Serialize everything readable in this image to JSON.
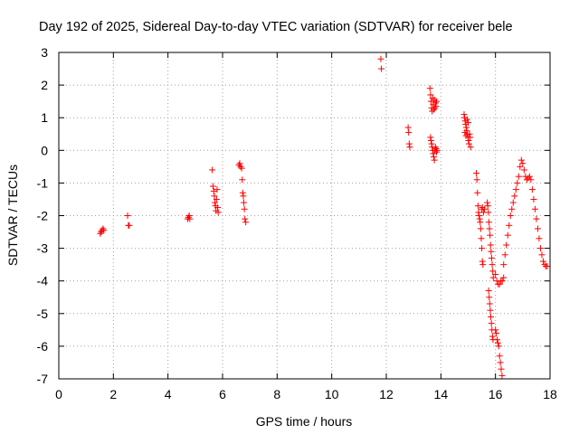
{
  "chart_data": {
    "type": "scatter",
    "title": "Day 192 of 2025, Sidereal Day-to-day VTEC variation (SDTVAR) for receiver bele",
    "xlabel": "GPS time / hours",
    "ylabel": "SDTVAR / TECUs",
    "xlim": [
      0,
      18
    ],
    "ylim": [
      -7,
      3
    ],
    "xticks": [
      "0",
      "2",
      "4",
      "6",
      "8",
      "10",
      "12",
      "14",
      "16",
      "18"
    ],
    "yticks": [
      "3",
      "2",
      "1",
      "0",
      "-1",
      "-2",
      "-3",
      "-4",
      "-5",
      "-6",
      "-7"
    ],
    "grid": true,
    "marker": "+",
    "color": "#ff0000",
    "series": [
      {
        "name": "SDTVAR",
        "points": [
          [
            1.52,
            -2.55
          ],
          [
            1.55,
            -2.5
          ],
          [
            1.58,
            -2.45
          ],
          [
            1.62,
            -2.4
          ],
          [
            1.65,
            -2.45
          ],
          [
            2.52,
            -2.0
          ],
          [
            2.55,
            -2.3
          ],
          [
            2.58,
            -2.3
          ],
          [
            4.72,
            -2.1
          ],
          [
            4.75,
            -2.05
          ],
          [
            4.78,
            -2.0
          ],
          [
            4.8,
            -2.1
          ],
          [
            5.62,
            -0.6
          ],
          [
            5.65,
            -1.1
          ],
          [
            5.68,
            -1.25
          ],
          [
            5.7,
            -1.4
          ],
          [
            5.72,
            -1.6
          ],
          [
            5.74,
            -1.7
          ],
          [
            5.76,
            -1.85
          ],
          [
            5.78,
            -1.5
          ],
          [
            5.8,
            -1.2
          ],
          [
            5.82,
            -1.75
          ],
          [
            5.84,
            -1.9
          ],
          [
            6.6,
            -0.45
          ],
          [
            6.63,
            -0.4
          ],
          [
            6.66,
            -0.5
          ],
          [
            6.7,
            -0.55
          ],
          [
            6.72,
            -0.9
          ],
          [
            6.74,
            -1.3
          ],
          [
            6.76,
            -1.4
          ],
          [
            6.78,
            -1.6
          ],
          [
            6.8,
            -1.8
          ],
          [
            6.82,
            -2.1
          ],
          [
            6.85,
            -2.2
          ],
          [
            11.8,
            2.8
          ],
          [
            11.82,
            2.5
          ],
          [
            12.8,
            0.7
          ],
          [
            12.82,
            0.55
          ],
          [
            12.84,
            0.2
          ],
          [
            12.86,
            0.1
          ],
          [
            13.6,
            1.9
          ],
          [
            13.62,
            1.7
          ],
          [
            13.64,
            1.5
          ],
          [
            13.66,
            1.3
          ],
          [
            13.68,
            1.2
          ],
          [
            13.7,
            1.6
          ],
          [
            13.72,
            1.4
          ],
          [
            13.74,
            1.25
          ],
          [
            13.76,
            1.55
          ],
          [
            13.78,
            1.3
          ],
          [
            13.8,
            1.45
          ],
          [
            13.82,
            1.35
          ],
          [
            13.84,
            1.5
          ],
          [
            13.62,
            0.4
          ],
          [
            13.64,
            0.3
          ],
          [
            13.66,
            0.2
          ],
          [
            13.68,
            0.1
          ],
          [
            13.7,
            0.0
          ],
          [
            13.72,
            -0.1
          ],
          [
            13.74,
            -0.2
          ],
          [
            13.76,
            -0.3
          ],
          [
            13.78,
            0.0
          ],
          [
            13.8,
            0.1
          ],
          [
            13.82,
            0.05
          ],
          [
            13.84,
            -0.05
          ],
          [
            13.86,
            0.0
          ],
          [
            14.85,
            1.1
          ],
          [
            14.87,
            1.0
          ],
          [
            14.89,
            0.9
          ],
          [
            14.91,
            0.8
          ],
          [
            14.93,
            0.7
          ],
          [
            14.95,
            0.6
          ],
          [
            14.97,
            0.5
          ],
          [
            14.99,
            0.4
          ],
          [
            15.01,
            0.3
          ],
          [
            15.03,
            0.2
          ],
          [
            15.05,
            0.5
          ],
          [
            15.07,
            0.4
          ],
          [
            15.09,
            0.1
          ],
          [
            14.88,
            0.55
          ],
          [
            14.92,
            0.45
          ],
          [
            14.96,
            0.95
          ],
          [
            15.0,
            0.85
          ],
          [
            15.3,
            -0.7
          ],
          [
            15.32,
            -0.9
          ],
          [
            15.34,
            -1.3
          ],
          [
            15.36,
            -1.7
          ],
          [
            15.38,
            -1.9
          ],
          [
            15.4,
            -2.0
          ],
          [
            15.42,
            -2.1
          ],
          [
            15.44,
            -2.2
          ],
          [
            15.46,
            -2.4
          ],
          [
            15.48,
            -2.7
          ],
          [
            15.5,
            -3.0
          ],
          [
            15.52,
            -3.4
          ],
          [
            15.54,
            -3.5
          ],
          [
            15.5,
            -1.8
          ],
          [
            15.52,
            -1.75
          ],
          [
            15.56,
            -1.9
          ],
          [
            15.6,
            -1.8
          ],
          [
            15.7,
            -1.6
          ],
          [
            15.72,
            -1.7
          ],
          [
            15.74,
            -1.9
          ],
          [
            15.76,
            -2.2
          ],
          [
            15.78,
            -2.4
          ],
          [
            15.8,
            -2.6
          ],
          [
            15.82,
            -2.9
          ],
          [
            15.84,
            -3.1
          ],
          [
            15.86,
            -3.3
          ],
          [
            15.88,
            -3.5
          ],
          [
            15.9,
            -3.7
          ],
          [
            15.92,
            -3.9
          ],
          [
            15.75,
            -4.3
          ],
          [
            15.77,
            -4.5
          ],
          [
            15.79,
            -4.7
          ],
          [
            15.81,
            -4.9
          ],
          [
            15.83,
            -5.1
          ],
          [
            15.85,
            -5.3
          ],
          [
            15.87,
            -5.5
          ],
          [
            15.89,
            -5.7
          ],
          [
            15.91,
            -5.8
          ],
          [
            16.0,
            -5.5
          ],
          [
            16.03,
            -5.6
          ],
          [
            16.06,
            -5.8
          ],
          [
            16.09,
            -5.9
          ],
          [
            16.12,
            -6.0
          ],
          [
            16.15,
            -6.3
          ],
          [
            16.18,
            -6.5
          ],
          [
            16.21,
            -6.7
          ],
          [
            16.24,
            -6.9
          ],
          [
            16.0,
            -3.8
          ],
          [
            16.05,
            -4.0
          ],
          [
            16.1,
            -4.1
          ],
          [
            16.15,
            -4.1
          ],
          [
            16.2,
            -4.0
          ],
          [
            16.25,
            -4.0
          ],
          [
            16.3,
            -3.9
          ],
          [
            16.3,
            -3.5
          ],
          [
            16.35,
            -3.2
          ],
          [
            16.4,
            -2.9
          ],
          [
            16.45,
            -2.6
          ],
          [
            16.5,
            -2.3
          ],
          [
            16.55,
            -2.0
          ],
          [
            16.6,
            -1.8
          ],
          [
            16.65,
            -1.6
          ],
          [
            16.7,
            -1.4
          ],
          [
            16.75,
            -1.2
          ],
          [
            16.8,
            -1.0
          ],
          [
            16.85,
            -0.8
          ],
          [
            16.9,
            -0.5
          ],
          [
            16.95,
            -0.3
          ],
          [
            17.0,
            -0.4
          ],
          [
            17.05,
            -0.6
          ],
          [
            17.1,
            -0.8
          ],
          [
            17.15,
            -0.9
          ],
          [
            17.2,
            -0.85
          ],
          [
            17.25,
            -0.8
          ],
          [
            17.3,
            -0.9
          ],
          [
            17.35,
            -1.2
          ],
          [
            17.4,
            -1.5
          ],
          [
            17.45,
            -1.8
          ],
          [
            17.5,
            -2.1
          ],
          [
            17.55,
            -2.4
          ],
          [
            17.6,
            -2.7
          ],
          [
            17.65,
            -3.0
          ],
          [
            17.7,
            -3.2
          ],
          [
            17.75,
            -3.4
          ],
          [
            17.8,
            -3.5
          ],
          [
            17.85,
            -3.55
          ],
          [
            17.9,
            -3.55
          ]
        ]
      }
    ]
  }
}
